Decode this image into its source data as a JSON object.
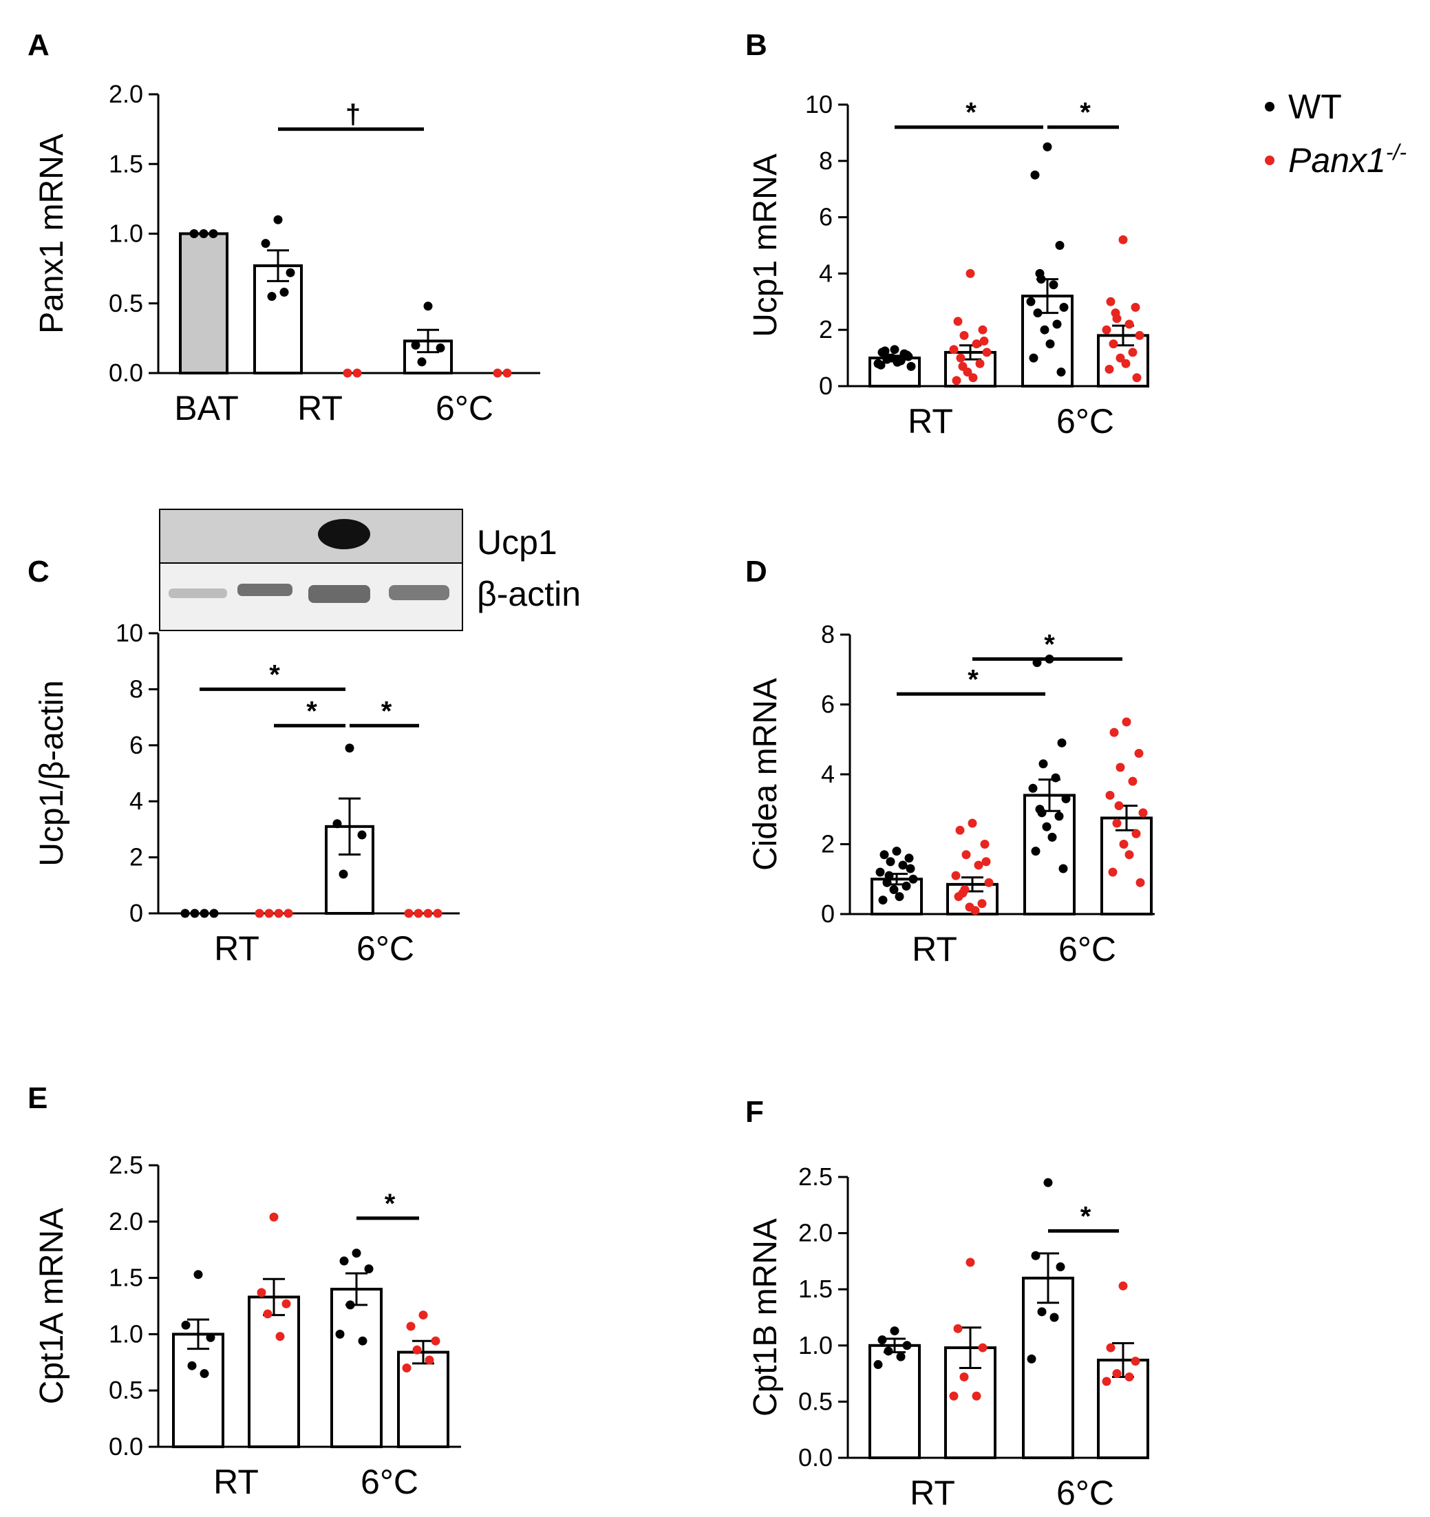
{
  "colors": {
    "wt": "#000000",
    "ko": "#e8251f",
    "bat_bar": "#c8c8c8",
    "bar": "#ffffff"
  },
  "legend": {
    "wt": "WT",
    "ko_base": "Panx1",
    "ko_sup": "-/-"
  },
  "chart_data": [
    {
      "id": "A",
      "type": "bar",
      "letter": "A",
      "ylabel": "Panx1 mRNA",
      "ylim": [
        0,
        2.0
      ],
      "yticks": [
        0.0,
        0.5,
        1.0,
        1.5,
        2.0
      ],
      "ytick_labels": [
        "0.0",
        "0.5",
        "1.0",
        "1.5",
        "2.0"
      ],
      "categories": [
        "BAT",
        "RT",
        "6°C"
      ],
      "bars": [
        {
          "group": "BAT",
          "series": "BAT",
          "value": 1.0,
          "sem": 0,
          "points": [
            1.0,
            1.0,
            1.0
          ]
        },
        {
          "group": "RT",
          "series": "WT",
          "value": 0.77,
          "sem": 0.11,
          "points": [
            1.1,
            0.93,
            0.72,
            0.55,
            0.58
          ]
        },
        {
          "group": "RT",
          "series": "Panx1-/-",
          "value": 0,
          "sem": 0,
          "points": [
            0.0,
            0.0
          ]
        },
        {
          "group": "6°C",
          "series": "WT",
          "value": 0.23,
          "sem": 0.08,
          "points": [
            0.48,
            0.2,
            0.18,
            0.08
          ]
        },
        {
          "group": "6°C",
          "series": "Panx1-/-",
          "value": 0,
          "sem": 0,
          "points": [
            0.0,
            0.0
          ]
        }
      ],
      "significance": [
        {
          "from": 1,
          "to": 3,
          "y": 1.75,
          "label": "†"
        }
      ]
    },
    {
      "id": "B",
      "type": "bar",
      "letter": "B",
      "ylabel": "Ucp1 mRNA",
      "ylim": [
        0,
        10
      ],
      "yticks": [
        0,
        2,
        4,
        6,
        8,
        10
      ],
      "ytick_labels": [
        "0",
        "2",
        "4",
        "6",
        "8",
        "10"
      ],
      "categories": [
        "RT",
        "6°C"
      ],
      "bars": [
        {
          "group": "RT",
          "series": "WT",
          "value": 1.0,
          "sem": 0.08,
          "points": [
            1.3,
            1.2,
            1.1,
            1.0,
            0.9,
            0.8,
            0.7,
            1.25,
            1.15,
            1.0,
            0.85,
            0.75,
            1.05,
            0.95
          ]
        },
        {
          "group": "RT",
          "series": "Panx1-/-",
          "value": 1.2,
          "sem": 0.25,
          "points": [
            4.0,
            2.3,
            2.0,
            1.8,
            1.5,
            1.3,
            1.2,
            1.0,
            0.8,
            0.5,
            0.3,
            0.2,
            1.6,
            0.7
          ]
        },
        {
          "group": "6°C",
          "series": "WT",
          "value": 3.2,
          "sem": 0.6,
          "points": [
            8.5,
            7.5,
            5.0,
            3.8,
            3.6,
            3.0,
            2.8,
            2.6,
            2.2,
            2.0,
            1.5,
            1.0,
            0.5,
            4.0
          ]
        },
        {
          "group": "6°C",
          "series": "Panx1-/-",
          "value": 1.8,
          "sem": 0.35,
          "points": [
            5.2,
            3.0,
            2.8,
            2.4,
            2.2,
            2.0,
            1.8,
            1.5,
            1.2,
            1.0,
            0.8,
            0.6,
            0.3,
            2.6
          ]
        }
      ],
      "significance": [
        {
          "from": 0,
          "to": 2,
          "y": 9.2,
          "label": "*"
        },
        {
          "from": 2,
          "to": 3,
          "y": 9.2,
          "label": "*"
        }
      ]
    },
    {
      "id": "C",
      "type": "bar",
      "letter": "C",
      "ylabel": "Ucp1/β-actin",
      "ylim": [
        0,
        10
      ],
      "yticks": [
        0,
        2,
        4,
        6,
        8,
        10
      ],
      "ytick_labels": [
        "0",
        "2",
        "4",
        "6",
        "8",
        "10"
      ],
      "categories": [
        "RT",
        "6°C"
      ],
      "bars": [
        {
          "group": "RT",
          "series": "WT",
          "value": 0,
          "sem": 0,
          "points": [
            0.0,
            0.0,
            0.0,
            0.0
          ]
        },
        {
          "group": "RT",
          "series": "Panx1-/-",
          "value": 0,
          "sem": 0,
          "points": [
            0.0,
            0.0,
            0.0,
            0.0
          ]
        },
        {
          "group": "6°C",
          "series": "WT",
          "value": 3.1,
          "sem": 1.0,
          "points": [
            5.9,
            3.2,
            2.8,
            1.4
          ]
        },
        {
          "group": "6°C",
          "series": "Panx1-/-",
          "value": 0,
          "sem": 0,
          "points": [
            0.0,
            0.0,
            0.0,
            0.0
          ]
        }
      ],
      "significance": [
        {
          "from": 0,
          "to": 2,
          "y": 8.0,
          "label": "*"
        },
        {
          "from": 1,
          "to": 2,
          "y": 6.7,
          "label": "*"
        },
        {
          "from": 2,
          "to": 3,
          "y": 6.7,
          "label": "*"
        }
      ],
      "blot": {
        "labels": [
          "Ucp1",
          "β-actin"
        ]
      }
    },
    {
      "id": "D",
      "type": "bar",
      "letter": "D",
      "ylabel": "Cidea mRNA",
      "ylim": [
        0,
        8
      ],
      "yticks": [
        0,
        2,
        4,
        6,
        8
      ],
      "ytick_labels": [
        "0",
        "2",
        "4",
        "6",
        "8"
      ],
      "categories": [
        "RT",
        "6°C"
      ],
      "bars": [
        {
          "group": "RT",
          "series": "WT",
          "value": 1.0,
          "sem": 0.15,
          "points": [
            1.8,
            1.7,
            1.6,
            1.5,
            1.4,
            1.2,
            1.0,
            0.9,
            0.8,
            0.7,
            0.5,
            0.4,
            1.3,
            1.1
          ]
        },
        {
          "group": "RT",
          "series": "Panx1-/-",
          "value": 0.85,
          "sem": 0.2,
          "points": [
            2.6,
            2.4,
            2.0,
            1.7,
            1.4,
            1.1,
            0.9,
            0.6,
            0.3,
            0.2,
            0.1,
            0.5,
            1.5,
            0.7
          ]
        },
        {
          "group": "6°C",
          "series": "WT",
          "value": 3.4,
          "sem": 0.45,
          "points": [
            7.3,
            7.2,
            4.9,
            4.3,
            3.9,
            3.6,
            3.3,
            3.0,
            2.8,
            2.5,
            2.2,
            1.8,
            1.3,
            2.9
          ]
        },
        {
          "group": "6°C",
          "series": "Panx1-/-",
          "value": 2.75,
          "sem": 0.35,
          "points": [
            5.5,
            5.2,
            4.6,
            4.2,
            3.8,
            3.4,
            2.9,
            2.6,
            2.3,
            2.0,
            1.7,
            1.2,
            0.9,
            3.1
          ]
        }
      ],
      "significance": [
        {
          "from": 0,
          "to": 2,
          "y": 6.3,
          "label": "*"
        },
        {
          "from": 1,
          "to": 3,
          "y": 7.3,
          "label": "*"
        }
      ]
    },
    {
      "id": "E",
      "type": "bar",
      "letter": "E",
      "ylabel": "Cpt1A mRNA",
      "ylim": [
        0,
        2.5
      ],
      "yticks": [
        0.0,
        0.5,
        1.0,
        1.5,
        2.0,
        2.5
      ],
      "ytick_labels": [
        "0.0",
        "0.5",
        "1.0",
        "1.5",
        "2.0",
        "2.5"
      ],
      "categories": [
        "RT",
        "6°C"
      ],
      "bars": [
        {
          "group": "RT",
          "series": "WT",
          "value": 1.0,
          "sem": 0.13,
          "points": [
            1.53,
            1.08,
            0.97,
            0.72,
            0.65
          ]
        },
        {
          "group": "RT",
          "series": "Panx1-/-",
          "value": 1.33,
          "sem": 0.16,
          "points": [
            2.04,
            1.37,
            1.27,
            1.18,
            0.98
          ]
        },
        {
          "group": "6°C",
          "series": "WT",
          "value": 1.4,
          "sem": 0.14,
          "points": [
            1.72,
            1.65,
            1.58,
            1.26,
            0.94,
            1.0
          ]
        },
        {
          "group": "6°C",
          "series": "Panx1-/-",
          "value": 0.84,
          "sem": 0.1,
          "points": [
            1.17,
            1.07,
            0.94,
            0.86,
            0.77,
            0.7
          ]
        }
      ],
      "significance": [
        {
          "from": 2,
          "to": 3,
          "y": 2.03,
          "label": "*"
        }
      ]
    },
    {
      "id": "F",
      "type": "bar",
      "letter": "F",
      "ylabel": "Cpt1B mRNA",
      "ylim": [
        0,
        2.5
      ],
      "yticks": [
        0.0,
        0.5,
        1.0,
        1.5,
        2.0,
        2.5
      ],
      "ytick_labels": [
        "0.0",
        "0.5",
        "1.0",
        "1.5",
        "2.0",
        "2.5"
      ],
      "categories": [
        "RT",
        "6°C"
      ],
      "bars": [
        {
          "group": "RT",
          "series": "WT",
          "value": 1.0,
          "sem": 0.06,
          "points": [
            1.13,
            1.05,
            1.0,
            0.95,
            0.9,
            0.83
          ]
        },
        {
          "group": "RT",
          "series": "Panx1-/-",
          "value": 0.98,
          "sem": 0.18,
          "points": [
            1.74,
            1.15,
            0.98,
            0.72,
            0.55,
            0.55
          ]
        },
        {
          "group": "6°C",
          "series": "WT",
          "value": 1.6,
          "sem": 0.22,
          "points": [
            2.45,
            1.8,
            1.7,
            1.3,
            1.25,
            0.88
          ]
        },
        {
          "group": "6°C",
          "series": "Panx1-/-",
          "value": 0.87,
          "sem": 0.15,
          "points": [
            1.53,
            0.98,
            0.86,
            0.75,
            0.72,
            0.68
          ]
        }
      ],
      "significance": [
        {
          "from": 2,
          "to": 3,
          "y": 2.02,
          "label": "*"
        }
      ]
    }
  ]
}
